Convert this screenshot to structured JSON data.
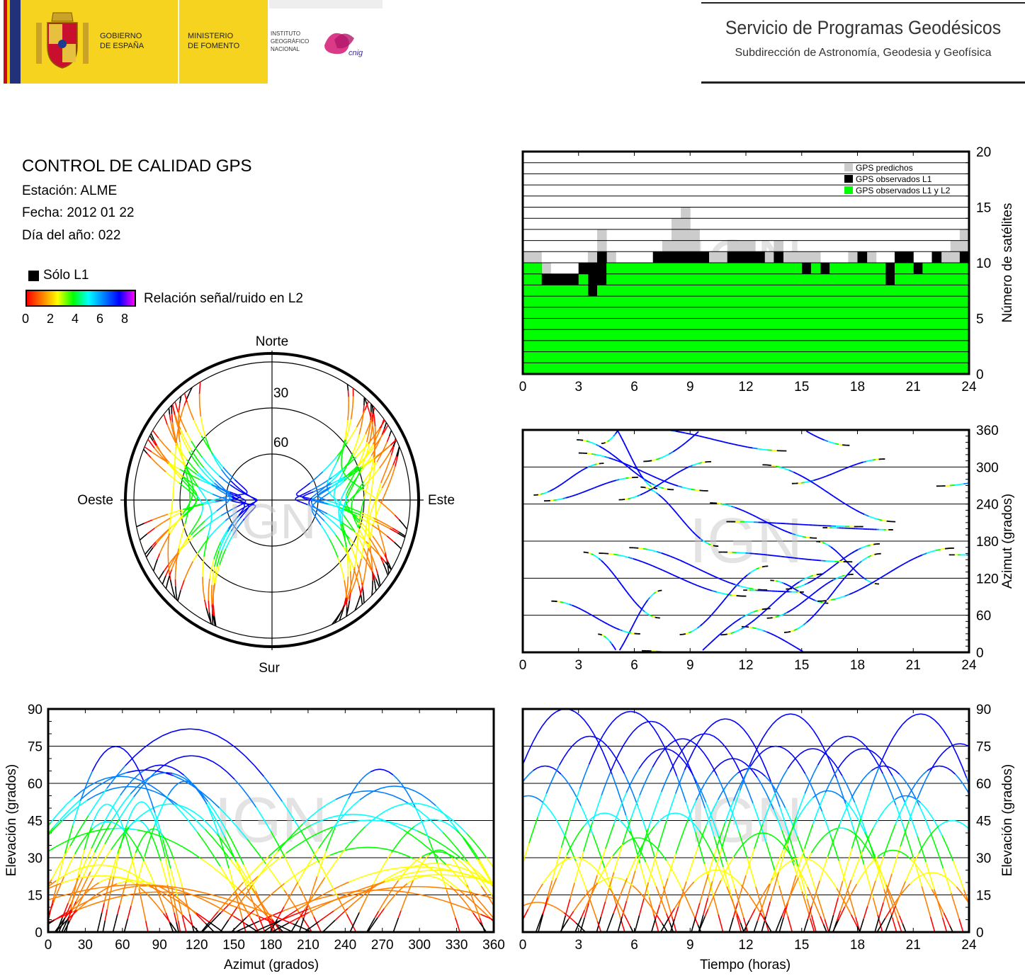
{
  "header": {
    "gov_line1": "GOBIERNO",
    "gov_line2": "DE ESPAÑA",
    "min_line1": "MINISTERIO",
    "min_line2": "DE FOMENTO",
    "ign_line1": "INSTITUTO",
    "ign_line2": "GEOGRÁFICO",
    "ign_line3": "NACIONAL",
    "cnig_logo_text": "cnig",
    "service_title": "Servicio de Programas Geodésicos",
    "service_subtitle": "Subdirección de Astronomía, Geodesia y Geofísica"
  },
  "info": {
    "title": "CONTROL DE CALIDAD GPS",
    "station": "Estación: ALME",
    "date": "Fecha: 2012 01 22",
    "doy": "Día del año: 022"
  },
  "legend": {
    "l1_only": "Sólo L1",
    "colorbar_label": "Relación señal/ruido en L2",
    "ticks": [
      "0",
      "2",
      "4",
      "6",
      "8"
    ],
    "colors": [
      "#ff0000",
      "#ff8000",
      "#ffff00",
      "#00ff00",
      "#00ffff",
      "#0080ff",
      "#0000ff",
      "#ff00ff"
    ]
  },
  "watermark": "IGN",
  "chart_data": [
    {
      "id": "satellite_count",
      "type": "bar",
      "x_range": [
        0,
        24
      ],
      "x_ticks": [
        "0",
        "3",
        "6",
        "9",
        "12",
        "15",
        "18",
        "21",
        "24"
      ],
      "y_range": [
        0,
        20
      ],
      "y_ticks": [
        "0",
        "5",
        "10",
        "15",
        "20"
      ],
      "ylabel": "Número de satélites",
      "grid": true,
      "legend_position": "top-right",
      "series": [
        {
          "name": "GPS predichos",
          "color": "#cccccc"
        },
        {
          "name": "GPS observados L1",
          "color": "#000000"
        },
        {
          "name": "GPS observados L1 y L2",
          "color": "#00ff00"
        }
      ],
      "hours": [
        0,
        0.5,
        1,
        1.5,
        2,
        2.5,
        3,
        3.5,
        4,
        4.5,
        5,
        5.5,
        6,
        6.5,
        7,
        7.5,
        8,
        8.5,
        9,
        9.5,
        10,
        10.5,
        11,
        11.5,
        12,
        12.5,
        13,
        13.5,
        14,
        14.5,
        15,
        15.5,
        16,
        16.5,
        17,
        17.5,
        18,
        18.5,
        19,
        19.5,
        20,
        20.5,
        21,
        21.5,
        22,
        22.5,
        23,
        23.5
      ],
      "predicted": [
        11,
        11,
        10,
        9,
        9,
        9,
        10,
        11,
        13,
        11,
        10,
        10,
        10,
        10,
        11,
        12,
        14,
        15,
        13,
        11,
        11,
        11,
        12,
        12,
        12,
        11,
        11,
        12,
        11,
        11,
        11,
        11,
        10,
        10,
        10,
        11,
        11,
        11,
        10,
        10,
        11,
        11,
        10,
        10,
        11,
        11,
        12,
        13
      ],
      "observed_l1": [
        10,
        10,
        9,
        9,
        9,
        9,
        10,
        10,
        11,
        10,
        10,
        10,
        10,
        10,
        11,
        11,
        11,
        11,
        11,
        11,
        10,
        10,
        11,
        11,
        11,
        11,
        10,
        11,
        10,
        10,
        10,
        10,
        10,
        10,
        10,
        10,
        11,
        10,
        10,
        10,
        11,
        11,
        10,
        10,
        11,
        10,
        10,
        11
      ],
      "observed_l1_l2": [
        10,
        10,
        8,
        8,
        8,
        8,
        9,
        7,
        8,
        10,
        10,
        10,
        10,
        10,
        10,
        10,
        10,
        10,
        10,
        10,
        10,
        10,
        10,
        10,
        10,
        10,
        10,
        10,
        10,
        10,
        9,
        10,
        9,
        10,
        10,
        10,
        10,
        10,
        10,
        8,
        10,
        10,
        9,
        10,
        10,
        10,
        10,
        10
      ]
    },
    {
      "id": "azimuth_time",
      "type": "line",
      "x_range": [
        0,
        24
      ],
      "x_ticks": [
        "0",
        "3",
        "6",
        "9",
        "12",
        "15",
        "18",
        "21",
        "24"
      ],
      "y_range": [
        0,
        360
      ],
      "y_ticks": [
        "0",
        "60",
        "120",
        "180",
        "240",
        "300",
        "360"
      ],
      "ylabel": "Azimut (grados)",
      "grid": true,
      "color_encoding": "SNR L2 (0-8)"
    },
    {
      "id": "skyplot",
      "type": "scatter",
      "projection": "polar",
      "elevation_ticks": [
        "30",
        "60"
      ],
      "directions": {
        "north": "Norte",
        "south": "Sur",
        "east": "Este",
        "west": "Oeste"
      },
      "color_encoding": "SNR L2 (0-8)"
    },
    {
      "id": "elevation_azimuth",
      "type": "line",
      "x_range": [
        0,
        360
      ],
      "x_ticks": [
        "0",
        "30",
        "60",
        "90",
        "120",
        "150",
        "180",
        "210",
        "240",
        "270",
        "300",
        "330",
        "360"
      ],
      "y_range": [
        0,
        90
      ],
      "y_ticks": [
        "0",
        "15",
        "30",
        "45",
        "60",
        "75",
        "90"
      ],
      "xlabel": "Azimut (grados)",
      "ylabel": "Elevación (grados)",
      "grid": true,
      "color_encoding": "SNR L2 (0-8)"
    },
    {
      "id": "elevation_time",
      "type": "line",
      "x_range": [
        0,
        24
      ],
      "x_ticks": [
        "0",
        "3",
        "6",
        "9",
        "12",
        "15",
        "18",
        "21",
        "24"
      ],
      "y_range": [
        0,
        90
      ],
      "y_ticks": [
        "0",
        "15",
        "30",
        "45",
        "60",
        "75",
        "90"
      ],
      "xlabel": "Tiempo (horas)",
      "ylabel": "Elevación (grados)",
      "grid": true,
      "peaks": [
        {
          "t": 0.8,
          "el": 12
        },
        {
          "t": 1.2,
          "el": 67
        },
        {
          "t": 2.3,
          "el": 90
        },
        {
          "t": 3.6,
          "el": 79
        },
        {
          "t": 4.4,
          "el": 48
        },
        {
          "t": 5.8,
          "el": 89
        },
        {
          "t": 6.2,
          "el": 38
        },
        {
          "t": 6.9,
          "el": 85
        },
        {
          "t": 7.6,
          "el": 74
        },
        {
          "t": 8.6,
          "el": 78
        },
        {
          "t": 9.8,
          "el": 80
        },
        {
          "t": 10.9,
          "el": 86
        },
        {
          "t": 11.3,
          "el": 70
        },
        {
          "t": 12.2,
          "el": 66
        },
        {
          "t": 13.6,
          "el": 75
        },
        {
          "t": 14.4,
          "el": 88
        },
        {
          "t": 15.6,
          "el": 74
        },
        {
          "t": 16.4,
          "el": 57
        },
        {
          "t": 17.5,
          "el": 79
        },
        {
          "t": 18.3,
          "el": 74
        },
        {
          "t": 19.4,
          "el": 67
        },
        {
          "t": 20.6,
          "el": 55
        },
        {
          "t": 21.4,
          "el": 88
        },
        {
          "t": 22.4,
          "el": 67
        },
        {
          "t": 23.5,
          "el": 76
        },
        {
          "t": 0.3,
          "el": 55
        },
        {
          "t": 2.8,
          "el": 30
        },
        {
          "t": 4.9,
          "el": 22
        },
        {
          "t": 8.2,
          "el": 48
        },
        {
          "t": 10.4,
          "el": 25
        },
        {
          "t": 12.9,
          "el": 40
        },
        {
          "t": 15.0,
          "el": 30
        },
        {
          "t": 17.1,
          "el": 42
        },
        {
          "t": 19.9,
          "el": 33
        },
        {
          "t": 22.0,
          "el": 24
        },
        {
          "t": 23.1,
          "el": 45
        }
      ]
    }
  ]
}
